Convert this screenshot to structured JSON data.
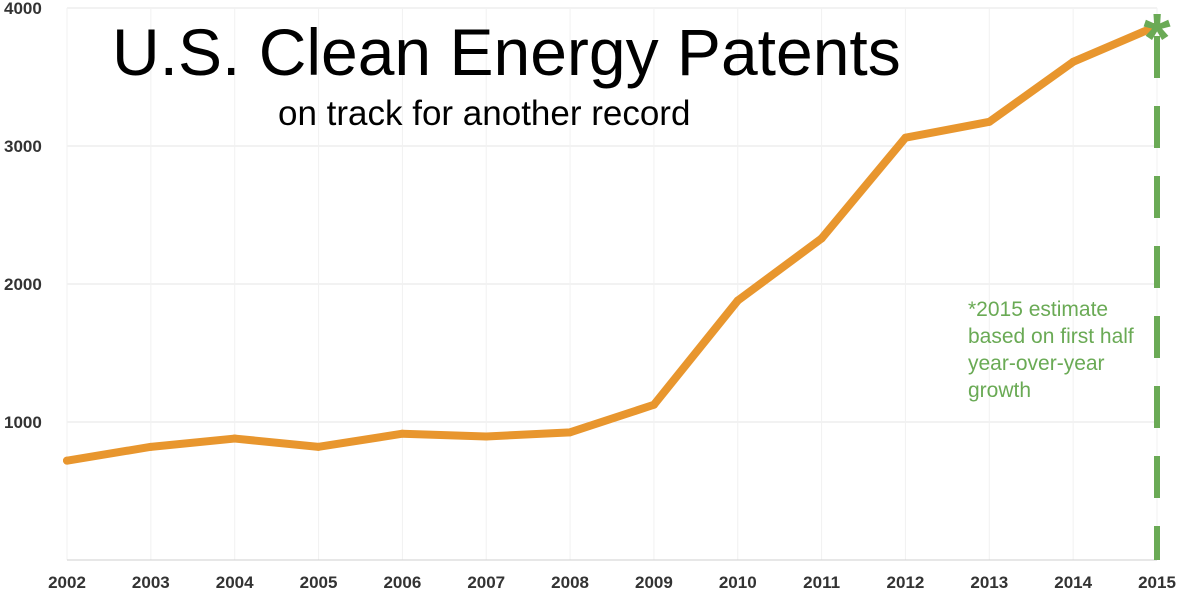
{
  "title": "U.S. Clean Energy Patents",
  "subtitle": "on track for another record",
  "note": "*2015 estimate based on first half year-over-year growth",
  "estimate_marker": "*",
  "colors": {
    "line": "#e8962e",
    "estimate": "#6aaa55",
    "grid": "#e6e6e6"
  },
  "chart_data": {
    "type": "line",
    "title": "U.S. Clean Energy Patents",
    "subtitle": "on track for another record",
    "x": [
      2002,
      2003,
      2004,
      2005,
      2006,
      2007,
      2008,
      2009,
      2010,
      2011,
      2012,
      2013,
      2014,
      2015
    ],
    "series": [
      {
        "values": [
          720,
          820,
          880,
          820,
          915,
          895,
          925,
          1125,
          1880,
          2330,
          3060,
          3175,
          3610,
          3870
        ]
      }
    ],
    "ylim": [
      0,
      4000
    ],
    "yticks": [
      1000,
      2000,
      3000,
      4000
    ],
    "grid": true,
    "estimate_year": 2015,
    "annotation": "*2015 estimate based on first half year-over-year growth"
  }
}
